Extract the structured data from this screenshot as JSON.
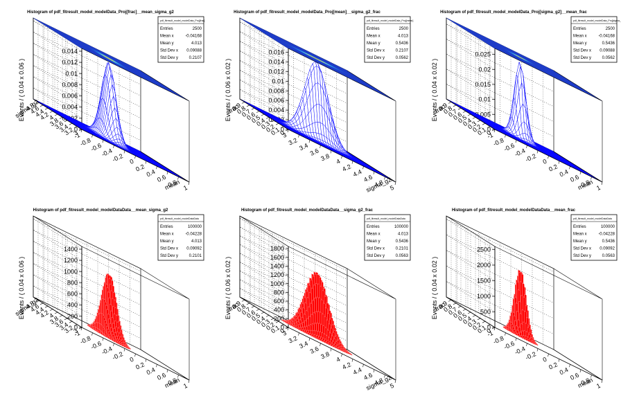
{
  "chart_data": [
    {
      "type": "surface",
      "title": "Histogram of pdf_fitresult_model_modelData_Proj[frac]__mean_sigma_g2",
      "stats_name": "pdf_fitresult_model_modelData_Proj[frac]",
      "stats": [
        [
          "Entries",
          "2500"
        ],
        [
          "Mean x",
          "-0.04168"
        ],
        [
          "Mean y",
          "4.013"
        ],
        [
          "Std Dev x",
          "0.09088"
        ],
        [
          "Std Dev y",
          "0.2107"
        ]
      ],
      "zlabel": "Events / ( 0.04 x 0.06 )",
      "z_ticks": [
        "0",
        "0.002",
        "0.004",
        "0.006",
        "0.008",
        "0.01",
        "0.012",
        "0.014"
      ],
      "z_max": 0.0145,
      "ylabel": "sigma_g2",
      "y_ticks": [
        "3",
        "3.2",
        "3.4",
        "3.6",
        "3.8",
        "4",
        "4.2",
        "4.4",
        "4.6",
        "4.8"
      ],
      "y_range": [
        3,
        5
      ],
      "xlabel": "mean",
      "x_ticks": [
        "-1",
        "-0.8",
        "-0.6",
        "-0.4",
        "-0.2",
        "0",
        "0.2",
        "0.4",
        "0.6",
        "0.8",
        "1"
      ],
      "x_range": [
        -1,
        1
      ],
      "peak": {
        "x": -0.04168,
        "y": 4.013,
        "sx": 0.09088,
        "sy": 0.2107,
        "z": 0.0138
      },
      "color": "#0000ff"
    },
    {
      "type": "surface",
      "title": "Histogram of pdf_fitresult_model_modelData_Proj[mean]__sigma_g2_frac",
      "stats_name": "pdf_fitresult_model_modelData_Proj[mean]",
      "stats": [
        [
          "Entries",
          "2500"
        ],
        [
          "Mean x",
          "4.013"
        ],
        [
          "Mean y",
          "0.5436"
        ],
        [
          "Std Dev x",
          "0.2107"
        ],
        [
          "Std Dev y",
          "0.0562"
        ]
      ],
      "zlabel": "Events / ( 0.06 x 0.02 )",
      "z_ticks": [
        "0",
        "0.002",
        "0.004",
        "0.006",
        "0.008",
        "0.01",
        "0.012",
        "0.014",
        "0.016"
      ],
      "z_max": 0.0168,
      "ylabel": "frac",
      "y_ticks": [
        "0",
        "0.1",
        "0.2",
        "0.3",
        "0.4",
        "0.5",
        "0.6",
        "0.7",
        "0.8",
        "0.9"
      ],
      "y_range": [
        0,
        1
      ],
      "xlabel": "sigma_g2",
      "x_ticks": [
        "3",
        "3.2",
        "3.4",
        "3.6",
        "3.8",
        "4",
        "4.2",
        "4.4",
        "4.6",
        "4.8",
        "5"
      ],
      "x_range": [
        3,
        5
      ],
      "peak": {
        "x": 4.013,
        "y": 0.5436,
        "sx": 0.2107,
        "sy": 0.0562,
        "z": 0.0162
      },
      "color": "#0000ff"
    },
    {
      "type": "surface",
      "title": "Histogram of pdf_fitresult_model_modelData_Proj[sigma_g2]__mean_frac",
      "stats_name": "pdf_fitresult_model_modelData_Proj[sigma_g2]",
      "stats": [
        [
          "Entries",
          "2500"
        ],
        [
          "Mean x",
          "-0.04168"
        ],
        [
          "Mean y",
          "0.5436"
        ],
        [
          "Std Dev x",
          "0.09088"
        ],
        [
          "Std Dev y",
          "0.0562"
        ]
      ],
      "zlabel": "Events / ( 0.04 x 0.02 )",
      "z_ticks": [
        "0",
        "0.005",
        "0.01",
        "0.015",
        "0.02",
        "0.025"
      ],
      "z_max": 0.027,
      "ylabel": "frac",
      "y_ticks": [
        "0",
        "0.1",
        "0.2",
        "0.3",
        "0.4",
        "0.5",
        "0.6",
        "0.7",
        "0.8",
        "0.9"
      ],
      "y_range": [
        0,
        1
      ],
      "xlabel": "mean",
      "x_ticks": [
        "-1",
        "-0.8",
        "-0.6",
        "-0.4",
        "-0.2",
        "0",
        "0.2",
        "0.4",
        "0.6",
        "0.8",
        "1"
      ],
      "x_range": [
        -1,
        1
      ],
      "peak": {
        "x": -0.04168,
        "y": 0.5436,
        "sx": 0.09088,
        "sy": 0.0562,
        "z": 0.0255
      },
      "color": "#0000ff"
    },
    {
      "type": "lego",
      "title": "Histogram of pdf_fitresult_model_modelDataData__mean_sigma_g2",
      "stats_name": "pdf_fitresult_model_modelDataData",
      "stats": [
        [
          "Entries",
          "100000"
        ],
        [
          "Mean x",
          "-0.04228"
        ],
        [
          "Mean y",
          "4.013"
        ],
        [
          "Std Dev x",
          "0.09092"
        ],
        [
          "Std Dev y",
          "0.2101"
        ]
      ],
      "zlabel": "Events / ( 0.04 x 0.06 )",
      "z_ticks": [
        "0",
        "200",
        "400",
        "600",
        "800",
        "1000",
        "1200",
        "1400"
      ],
      "z_max": 1450,
      "ylabel": "sigma_g2",
      "y_ticks": [
        "3",
        "3.2",
        "3.4",
        "3.6",
        "3.8",
        "4",
        "4.2",
        "4.4",
        "4.6",
        "4.8"
      ],
      "y_range": [
        3,
        5
      ],
      "xlabel": "mean",
      "x_ticks": [
        "-1",
        "-0.8",
        "-0.6",
        "-0.4",
        "-0.2",
        "0",
        "0.2",
        "0.4",
        "0.6",
        "0.8",
        "1"
      ],
      "x_range": [
        -1,
        1
      ],
      "peak": {
        "x": -0.04228,
        "y": 4.013,
        "sx": 0.09092,
        "sy": 0.2101,
        "z": 1150
      },
      "color": "#ff0000"
    },
    {
      "type": "lego",
      "title": "Histogram of pdf_fitresult_model_modelDataData__sigma_g2_frac",
      "stats_name": "pdf_fitresult_model_modelDataData",
      "stats": [
        [
          "Entries",
          "100000"
        ],
        [
          "Mean x",
          "4.013"
        ],
        [
          "Mean y",
          "0.5436"
        ],
        [
          "Std Dev x",
          "0.2101"
        ],
        [
          "Std Dev y",
          "0.0563"
        ]
      ],
      "zlabel": "Events / ( 0.06 x 0.02 )",
      "z_ticks": [
        "0",
        "200",
        "400",
        "600",
        "800",
        "1000",
        "1200",
        "1400",
        "1600",
        "1800"
      ],
      "z_max": 1850,
      "ylabel": "frac",
      "y_ticks": [
        "0",
        "0.1",
        "0.2",
        "0.3",
        "0.4",
        "0.5",
        "0.6",
        "0.7",
        "0.8",
        "0.9"
      ],
      "y_range": [
        0,
        1
      ],
      "xlabel": "sigma_g2",
      "x_ticks": [
        "3",
        "3.2",
        "3.4",
        "3.6",
        "3.8",
        "4",
        "4.2",
        "4.4",
        "4.6",
        "4.8",
        "5"
      ],
      "x_range": [
        3,
        5
      ],
      "peak": {
        "x": 4.013,
        "y": 0.5436,
        "sx": 0.2101,
        "sy": 0.0563,
        "z": 1500
      },
      "color": "#ff0000"
    },
    {
      "type": "lego",
      "title": "Histogram of pdf_fitresult_model_modelDataData__mean_frac",
      "stats_name": "pdf_fitresult_model_modelDataData",
      "stats": [
        [
          "Entries",
          "100000"
        ],
        [
          "Mean x",
          "-0.04228"
        ],
        [
          "Mean y",
          "0.5436"
        ],
        [
          "Std Dev x",
          "0.09092"
        ],
        [
          "Std Dev y",
          "0.0563"
        ]
      ],
      "zlabel": "Events / ( 0.04 x 0.02 )",
      "z_ticks": [
        "0",
        "500",
        "1000",
        "1500",
        "2000",
        "2500"
      ],
      "z_max": 2600,
      "ylabel": "frac",
      "y_ticks": [
        "0",
        "0.1",
        "0.2",
        "0.3",
        "0.4",
        "0.5",
        "0.6",
        "0.7",
        "0.8",
        "0.9"
      ],
      "y_range": [
        0,
        1
      ],
      "xlabel": "mean",
      "x_ticks": [
        "-1",
        "-0.8",
        "-0.6",
        "-0.4",
        "-0.2",
        "0",
        "0.2",
        "0.4",
        "0.6",
        "0.8",
        "1"
      ],
      "x_range": [
        -1,
        1
      ],
      "peak": {
        "x": -0.04228,
        "y": 0.5436,
        "sx": 0.09092,
        "sy": 0.0563,
        "z": 2150
      },
      "color": "#ff0000"
    }
  ]
}
